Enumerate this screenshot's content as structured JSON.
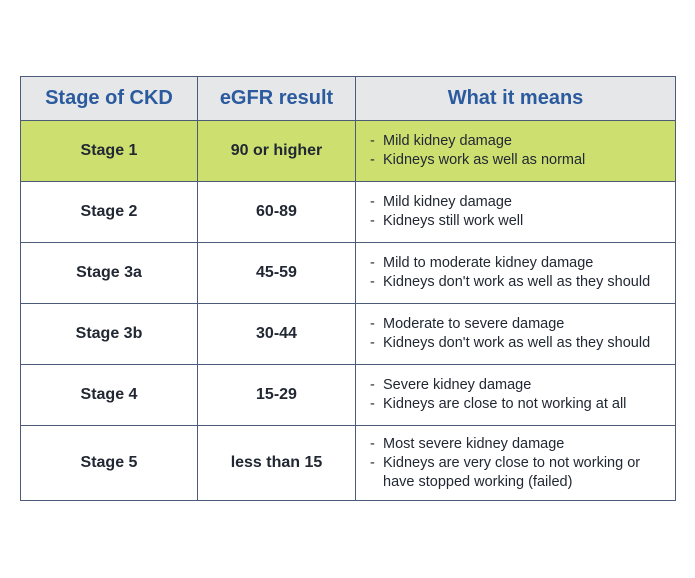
{
  "table": {
    "header": [
      "Stage of CKD",
      "eGFR result",
      "What it means"
    ],
    "rows": [
      [
        "Stage 1",
        "90 or higher",
        [
          "Mild kidney damage",
          "Kidneys work as well as normal"
        ]
      ],
      [
        "Stage 2",
        "60-89",
        [
          "Mild kidney damage",
          "Kidneys still work well"
        ]
      ],
      [
        "Stage 3a",
        "45-59",
        [
          "Mild to moderate kidney damage",
          "Kidneys don't work as well as they should"
        ]
      ],
      [
        "Stage 3b",
        "30-44",
        [
          "Moderate to severe damage",
          "Kidneys don't work as well as they should"
        ]
      ],
      [
        "Stage 4",
        "15-29",
        [
          "Severe kidney damage",
          "Kidneys are close to not working at all"
        ]
      ],
      [
        "Stage 5",
        "less than 15",
        [
          "Most severe kidney damage",
          "Kidneys are very close to not working or have stopped working (failed)"
        ]
      ]
    ]
  }
}
